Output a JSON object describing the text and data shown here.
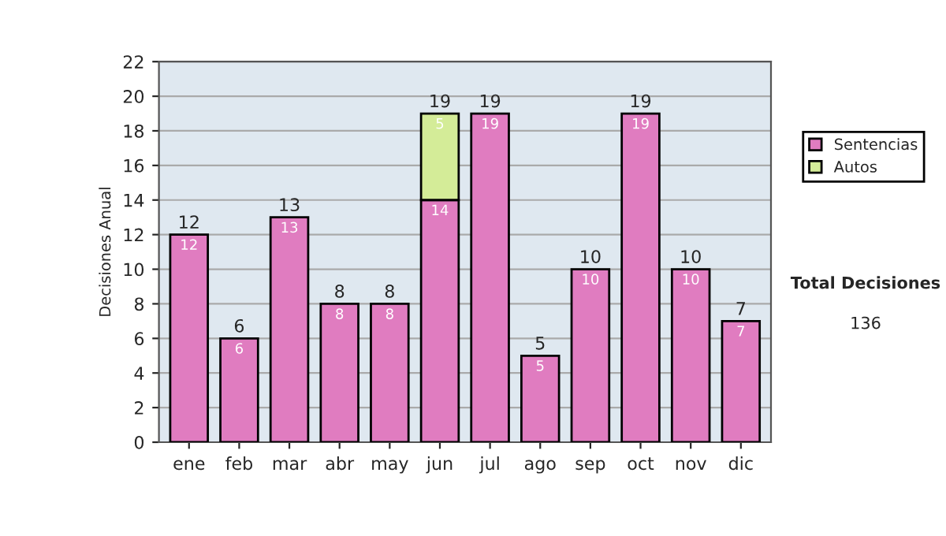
{
  "chart_data": {
    "type": "bar",
    "stacked": true,
    "ylabel": "Decisiones Anual",
    "categories": [
      "ene",
      "feb",
      "mar",
      "abr",
      "may",
      "jun",
      "jul",
      "ago",
      "sep",
      "oct",
      "nov",
      "dic"
    ],
    "series": [
      {
        "name": "Sentencias",
        "color": "#e07cc0",
        "values": [
          12,
          6,
          13,
          8,
          8,
          14,
          19,
          5,
          10,
          19,
          10,
          7
        ]
      },
      {
        "name": "Autos",
        "color": "#d4ec98",
        "values": [
          null,
          null,
          null,
          null,
          null,
          5,
          null,
          null,
          null,
          null,
          null,
          null
        ]
      }
    ],
    "data_labels": true,
    "totals": [
      "12",
      "6",
      "13",
      "8",
      "8",
      "19",
      "19",
      "5",
      "10",
      "19",
      "10",
      "7"
    ],
    "ylim": [
      0,
      22
    ],
    "yticks": [
      0,
      2,
      4,
      6,
      8,
      10,
      12,
      14,
      16,
      18,
      20,
      22
    ],
    "grid": "y",
    "legend": "right",
    "annotations": [
      "Total Decisiones",
      "136"
    ]
  }
}
